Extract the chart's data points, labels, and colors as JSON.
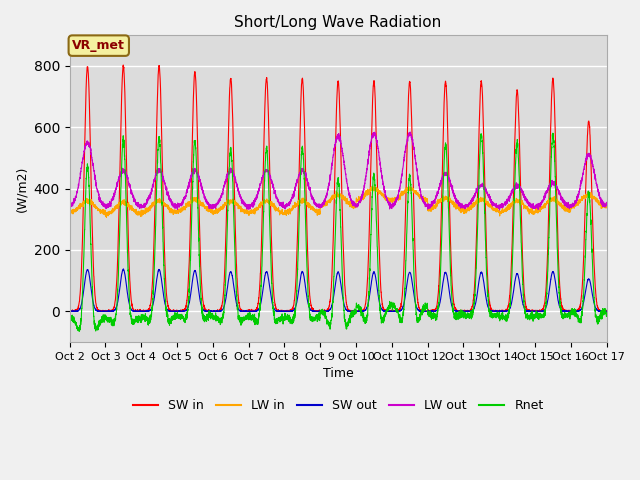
{
  "title": "Short/Long Wave Radiation",
  "ylabel": "(W/m2)",
  "xlabel": "Time",
  "ylim": [
    -100,
    900
  ],
  "bg_color": "#dcdcdc",
  "fig_color": "#f0f0f0",
  "station_label": "VR_met",
  "series": {
    "SW_in": {
      "color": "#ff0000",
      "label": "SW in"
    },
    "LW_in": {
      "color": "#ffa500",
      "label": "LW in"
    },
    "SW_out": {
      "color": "#0000cc",
      "label": "SW out"
    },
    "LW_out": {
      "color": "#cc00cc",
      "label": "LW out"
    },
    "Rnet": {
      "color": "#00cc00",
      "label": "Rnet"
    }
  },
  "n_days": 15,
  "pts_per_day": 288,
  "start_day": 2,
  "sw_peaks": [
    800,
    800,
    800,
    780,
    760,
    760,
    760,
    750,
    750,
    750,
    750,
    750,
    720,
    760,
    620
  ],
  "lw_out_peaks": [
    550,
    460,
    460,
    460,
    460,
    460,
    460,
    570,
    580,
    580,
    450,
    410,
    410,
    420,
    510
  ],
  "lw_in_base": [
    320,
    315,
    320,
    325,
    320,
    318,
    320,
    340,
    360,
    360,
    330,
    325,
    320,
    325,
    340
  ]
}
